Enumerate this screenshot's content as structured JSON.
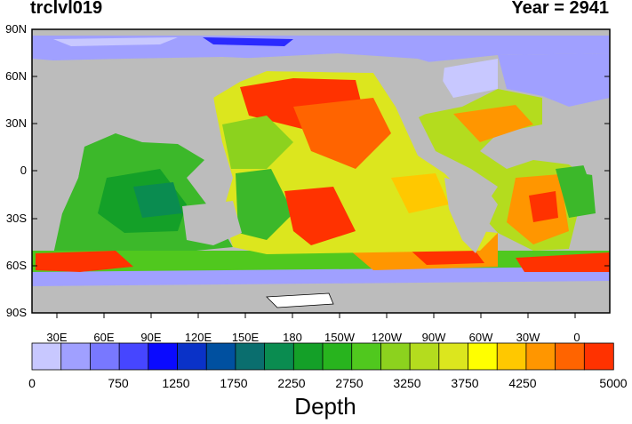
{
  "title": {
    "variable": "trclvl019",
    "year": "Year = 2941"
  },
  "lat_labels": [
    "90N",
    "60N",
    "30N",
    "0",
    "30S",
    "60S",
    "90S"
  ],
  "lon_labels": [
    "30E",
    "60E",
    "90E",
    "120E",
    "150E",
    "180",
    "150W",
    "120W",
    "90W",
    "60W",
    "30W",
    "0"
  ],
  "colorbar": {
    "title": "Depth",
    "tick_labels": [
      "0",
      "750",
      "1250",
      "1750",
      "2250",
      "2750",
      "3250",
      "3750",
      "4250",
      "5000"
    ],
    "colors": [
      "#c8c8ff",
      "#a0a0ff",
      "#7878ff",
      "#4646ff",
      "#0a0aff",
      "#0a32c8",
      "#0050a0",
      "#0a6e6e",
      "#0a8c50",
      "#14a028",
      "#28b41e",
      "#50c81e",
      "#8cd21e",
      "#b4dc1e",
      "#dce61e",
      "#ffff00",
      "#ffc800",
      "#ff9600",
      "#ff6400",
      "#ff3200"
    ]
  },
  "colors": {
    "land": "#bcbcbc",
    "sea_ice": "#ffffff"
  }
}
